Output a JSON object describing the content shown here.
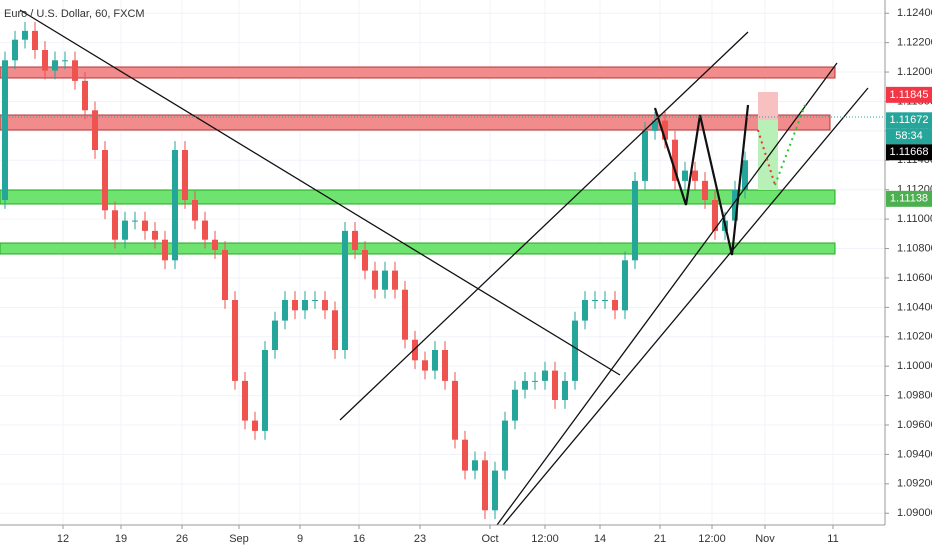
{
  "chart_data": {
    "type": "candlestick",
    "title": "Euro / U.S. Dollar, 60, FXCM",
    "up_color": "#26a69a",
    "down_color": "#ef5350",
    "open": [
      1.1113,
      1.1208,
      1.1222,
      1.1228,
      1.1215,
      1.1201,
      1.1208,
      1.1208,
      1.1194,
      1.1174,
      1.1147,
      1.1106,
      1.1086,
      1.1099,
      1.1099,
      1.1092,
      1.1086,
      1.1072,
      1.1147,
      1.1113,
      1.1099,
      1.1086,
      1.1079,
      1.1045,
      1.099,
      1.0963,
      1.0956,
      1.1011,
      1.1031,
      1.1045,
      1.1038,
      1.1045,
      1.1045,
      1.1038,
      1.1011,
      1.1092,
      1.1079,
      1.1065,
      1.1052,
      1.1065,
      1.1052,
      1.1018,
      1.1004,
      1.0997,
      1.1011,
      1.099,
      1.095,
      1.0929,
      1.0936,
      1.0902,
      1.0929,
      1.0963,
      1.0984,
      1.099,
      1.099,
      1.0997,
      1.0977,
      1.099,
      1.1031,
      1.1045,
      1.1045,
      1.1045,
      1.1038,
      1.1072,
      1.1126,
      1.116,
      1.1167,
      1.1154,
      1.1126,
      1.1133,
      1.1126,
      1.1113,
      1.1092,
      1.1099,
      1.112
    ],
    "high": [
      1.1214,
      1.1228,
      1.1234,
      1.1234,
      1.1221,
      1.1214,
      1.1214,
      1.1214,
      1.12,
      1.118,
      1.1153,
      1.1112,
      1.1105,
      1.1105,
      1.1105,
      1.1098,
      1.1092,
      1.1153,
      1.1153,
      1.1119,
      1.1105,
      1.1092,
      1.1085,
      1.1051,
      1.0996,
      1.0969,
      1.1017,
      1.1037,
      1.1051,
      1.1051,
      1.1051,
      1.1051,
      1.1051,
      1.1044,
      1.1098,
      1.1098,
      1.1085,
      1.1071,
      1.1071,
      1.1071,
      1.1058,
      1.1024,
      1.101,
      1.1017,
      1.1017,
      1.0996,
      1.0956,
      1.0942,
      1.0942,
      1.0935,
      1.0969,
      1.099,
      1.0996,
      1.0996,
      1.1003,
      1.1003,
      1.0996,
      1.1037,
      1.1051,
      1.1051,
      1.1051,
      1.1051,
      1.1078,
      1.1132,
      1.1166,
      1.1173,
      1.1173,
      1.116,
      1.1139,
      1.1139,
      1.1132,
      1.1119,
      1.1105,
      1.1126,
      1.1146
    ],
    "low": [
      1.1107,
      1.1202,
      1.1216,
      1.1209,
      1.1195,
      1.1195,
      1.1202,
      1.1188,
      1.1168,
      1.1141,
      1.11,
      1.108,
      1.108,
      1.1093,
      1.1086,
      1.108,
      1.1066,
      1.1066,
      1.1107,
      1.1093,
      1.108,
      1.1073,
      1.1039,
      1.0984,
      1.0957,
      1.095,
      1.095,
      1.1005,
      1.1025,
      1.1032,
      1.1032,
      1.1039,
      1.1032,
      1.1005,
      1.1005,
      1.1073,
      1.1059,
      1.1046,
      1.1046,
      1.1046,
      1.1012,
      1.0998,
      1.0991,
      1.0991,
      1.0984,
      1.0944,
      1.0923,
      1.0923,
      1.0896,
      1.0896,
      1.0923,
      1.0957,
      1.0978,
      1.0984,
      1.0984,
      1.0971,
      1.0971,
      1.0984,
      1.1025,
      1.1039,
      1.1039,
      1.1032,
      1.1032,
      1.1066,
      1.112,
      1.1154,
      1.1148,
      1.112,
      1.112,
      1.112,
      1.1107,
      1.1086,
      1.1086,
      1.1093,
      1.1114
    ],
    "close": [
      1.1208,
      1.1222,
      1.1228,
      1.1215,
      1.1201,
      1.1208,
      1.1208,
      1.1194,
      1.1174,
      1.1147,
      1.1106,
      1.1086,
      1.1099,
      1.1099,
      1.1092,
      1.1086,
      1.1072,
      1.1147,
      1.1113,
      1.1099,
      1.1086,
      1.1079,
      1.1045,
      1.099,
      1.0963,
      1.0956,
      1.1011,
      1.1031,
      1.1045,
      1.1038,
      1.1045,
      1.1045,
      1.1038,
      1.1011,
      1.1092,
      1.1079,
      1.1065,
      1.1052,
      1.1065,
      1.1052,
      1.1018,
      1.1004,
      1.0997,
      1.1011,
      1.099,
      1.095,
      1.0929,
      1.0936,
      1.0902,
      1.0929,
      1.0963,
      1.0984,
      1.099,
      1.099,
      1.0997,
      1.0977,
      1.099,
      1.1031,
      1.1045,
      1.1045,
      1.1045,
      1.1038,
      1.1072,
      1.1126,
      1.116,
      1.1167,
      1.1154,
      1.1126,
      1.1133,
      1.1126,
      1.1113,
      1.1092,
      1.1099,
      1.112,
      1.114
    ],
    "xlim": [
      0,
      88.5
    ],
    "xticks": [
      {
        "value": 6.3,
        "label": "12"
      },
      {
        "value": 12.1,
        "label": "19"
      },
      {
        "value": 18.2,
        "label": "26"
      },
      {
        "value": 23.9,
        "label": "Sep"
      },
      {
        "value": 30,
        "label": "9"
      },
      {
        "value": 35.9,
        "label": "16"
      },
      {
        "value": 42,
        "label": "23"
      },
      {
        "value": 49,
        "label": "Oct"
      },
      {
        "value": 54.5,
        "label": "12:00"
      },
      {
        "value": 60,
        "label": "14"
      },
      {
        "value": 66,
        "label": "21"
      },
      {
        "value": 71.2,
        "label": "12:00"
      },
      {
        "value": 76.5,
        "label": "Nov"
      },
      {
        "value": 83.3,
        "label": "11"
      }
    ],
    "ylim": [
      1.0892,
      1.1249
    ],
    "yticks": [
      {
        "value": 1.124,
        "label": "1.12400"
      },
      {
        "value": 1.122,
        "label": "1.12200"
      },
      {
        "value": 1.12,
        "label": "1.12000"
      },
      {
        "value": 1.118,
        "label": "1.11800"
      },
      {
        "value": 1.116,
        "label": "1.11600"
      },
      {
        "value": 1.114,
        "label": "1.11400"
      },
      {
        "value": 1.112,
        "label": "1.11200"
      },
      {
        "value": 1.11,
        "label": "1.11000"
      },
      {
        "value": 1.108,
        "label": "1.10800"
      },
      {
        "value": 1.106,
        "label": "1.10600"
      },
      {
        "value": 1.104,
        "label": "1.10400"
      },
      {
        "value": 1.102,
        "label": "1.10200"
      },
      {
        "value": 1.1,
        "label": "1.10000"
      },
      {
        "value": 1.098,
        "label": "1.09800"
      },
      {
        "value": 1.096,
        "label": "1.09600"
      },
      {
        "value": 1.094,
        "label": "1.09400"
      },
      {
        "value": 1.092,
        "label": "1.09200"
      },
      {
        "value": 1.09,
        "label": "1.09000"
      }
    ],
    "price_tags": [
      {
        "value": 1.11845,
        "color": "#f23645"
      },
      {
        "value": 1.11672,
        "color": "#26a69a"
      },
      {
        "value": 1.11668,
        "color": "#000000"
      },
      {
        "value": 1.11138,
        "color": "#4caf50"
      }
    ],
    "countdown": "58:34"
  }
}
